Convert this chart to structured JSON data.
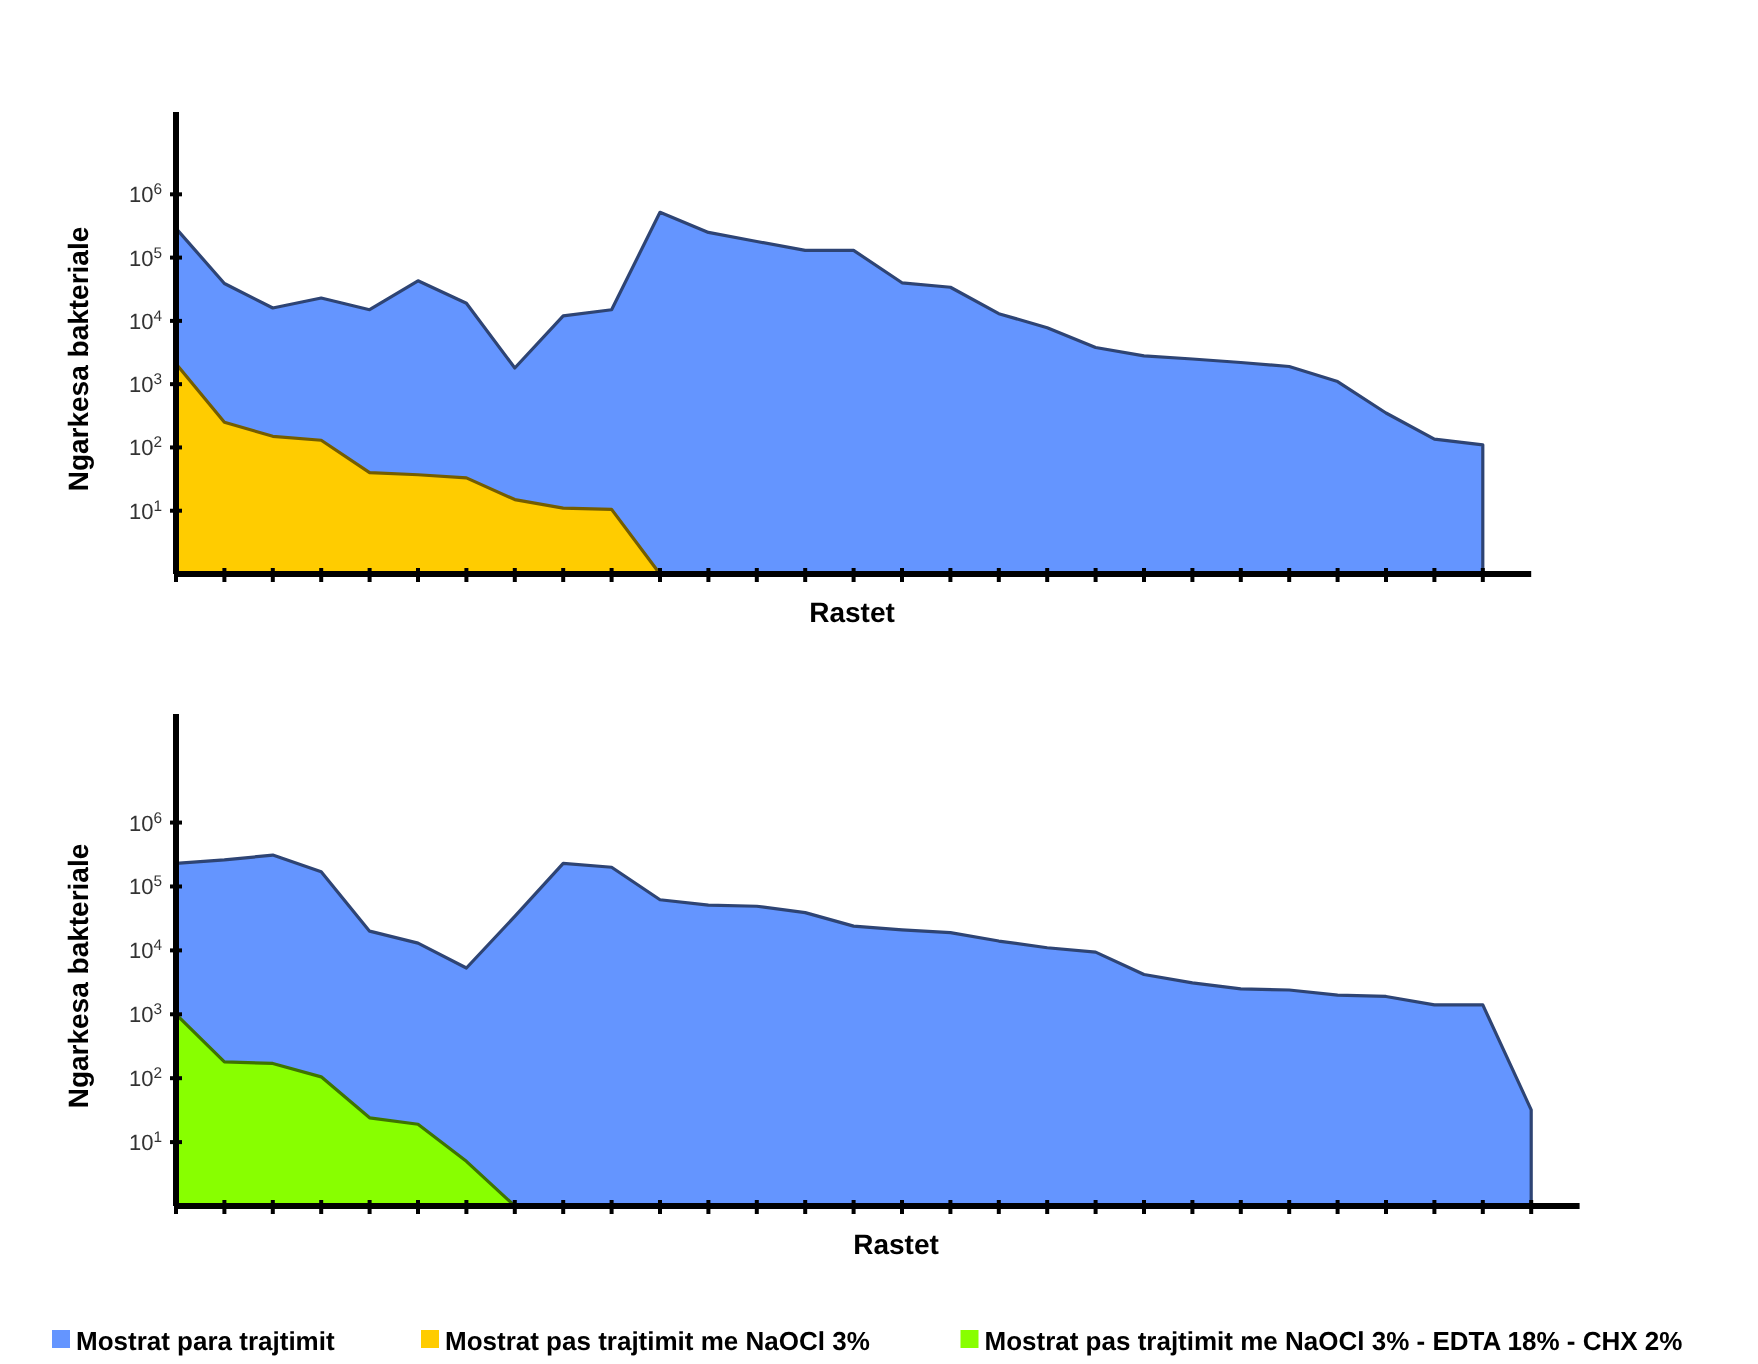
{
  "chart_data": [
    {
      "type": "area",
      "xlabel": "Rastet",
      "ylabel": "Ngarkesa bakteriale",
      "log": true,
      "legend": "bottom",
      "categories": [
        null,
        null,
        null,
        null,
        null,
        null,
        null,
        null,
        null,
        null,
        null,
        null,
        null,
        null,
        null,
        null,
        null,
        null,
        null,
        null,
        null,
        null,
        null,
        null,
        null,
        null,
        null,
        null
      ],
      "ylim": [
        1,
        20000000
      ],
      "yticks": [
        {
          "value": 10,
          "label": "10$^{1}$"
        },
        {
          "value": 100,
          "label": "10$^{2}$"
        },
        {
          "value": 1000,
          "label": "10$^{3}$"
        },
        {
          "value": 10000,
          "label": "10$^{4}$"
        },
        {
          "value": 100000,
          "label": "10$^{5}$"
        },
        {
          "value": 1000000,
          "label": "10$^{6}$"
        }
      ],
      "series": [
        {
          "name": "Mostrat para trajtimit",
          "color": "#6495ff",
          "values": [
            290000,
            39000,
            16000,
            23000,
            15000,
            43000,
            19000,
            1800,
            12000,
            15000,
            520000,
            250000,
            180000,
            130000,
            130000,
            40000,
            34000,
            13000,
            7800,
            3800,
            2800,
            2500,
            2200,
            1900,
            1100,
            350,
            135,
            110
          ]
        },
        {
          "name": "Mostrat pas trajtimit me NaOCl 3%",
          "color": "#ffcc00",
          "values": [
            2100,
            250,
            150,
            130,
            40,
            37,
            33,
            15,
            11,
            10.5,
            1,
            null,
            null,
            null,
            null,
            null,
            null,
            null,
            null,
            null,
            null,
            null,
            null,
            null,
            null,
            null,
            null,
            null
          ]
        }
      ]
    },
    {
      "type": "area",
      "xlabel": "Rastet",
      "ylabel": "Ngarkesa bakteriale",
      "log": true,
      "legend": "bottom",
      "categories": [
        null,
        null,
        null,
        null,
        null,
        null,
        null,
        null,
        null,
        null,
        null,
        null,
        null,
        null,
        null,
        null,
        null,
        null,
        null,
        null,
        null,
        null,
        null,
        null,
        null,
        null,
        null,
        null,
        null
      ],
      "ylim": [
        1,
        50000000
      ],
      "yticks": [
        {
          "value": 10,
          "label": "10$^{1}$"
        },
        {
          "value": 100,
          "label": "10$^{2}$"
        },
        {
          "value": 1000,
          "label": "10$^{3}$"
        },
        {
          "value": 10000,
          "label": "10$^{4}$"
        },
        {
          "value": 100000,
          "label": "10$^{5}$"
        },
        {
          "value": 1000000,
          "label": "10$^{6}$"
        }
      ],
      "series": [
        {
          "name": "Mostrat para trajtimit",
          "color": "#6495ff",
          "values": [
            230000,
            260000,
            310000,
            170000,
            20000,
            13000,
            5300,
            34000,
            230000,
            200000,
            62000,
            51000,
            49000,
            39000,
            24000,
            21000,
            19000,
            14000,
            11000,
            9400,
            4200,
            3100,
            2500,
            2400,
            2000,
            1900,
            1400,
            1400,
            32
          ]
        },
        {
          "name": "Mostrat pas trajtimit me NaOCl 3% - EDTA 18% - CHX 2%",
          "color": "#88ff00",
          "values": [
            1000,
            180,
            170,
            105,
            24,
            19,
            5,
            1,
            null,
            null,
            null,
            null,
            null,
            null,
            null,
            null,
            null,
            null,
            null,
            null,
            null,
            null,
            null,
            null,
            null,
            null,
            null,
            null,
            null
          ]
        }
      ]
    }
  ]
}
